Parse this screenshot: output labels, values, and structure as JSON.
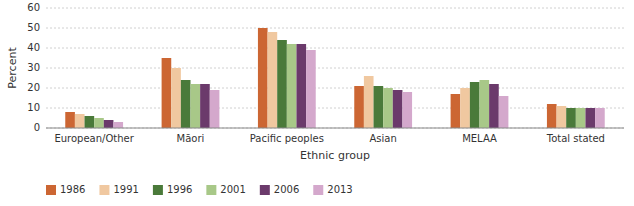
{
  "chart_data": {
    "type": "bar",
    "categories": [
      "European/Other",
      "Māori",
      "Pacific peoples",
      "Asian",
      "MELAA",
      "Total stated"
    ],
    "series": [
      {
        "name": "1986",
        "color": "#cc6633",
        "values": [
          8,
          35,
          50,
          21,
          17,
          12
        ]
      },
      {
        "name": "1991",
        "color": "#f0c8a0",
        "values": [
          7,
          30,
          48,
          26,
          20,
          11
        ]
      },
      {
        "name": "1996",
        "color": "#4a7a3a",
        "values": [
          6,
          24,
          44,
          21,
          23,
          10
        ]
      },
      {
        "name": "2001",
        "color": "#a8c888",
        "values": [
          5,
          22,
          42,
          20,
          24,
          10
        ]
      },
      {
        "name": "2006",
        "color": "#6b3a6b",
        "values": [
          4,
          22,
          42,
          19,
          22,
          10
        ]
      },
      {
        "name": "2013",
        "color": "#d4a8cc",
        "values": [
          3,
          19,
          39,
          18,
          16,
          10
        ]
      }
    ],
    "xlabel": "Ethnic group",
    "ylabel": "Percent",
    "ylim": [
      0,
      60
    ],
    "yticks": [
      0,
      10,
      20,
      30,
      40,
      50,
      60
    ],
    "grid": true,
    "legend": "lower left"
  }
}
